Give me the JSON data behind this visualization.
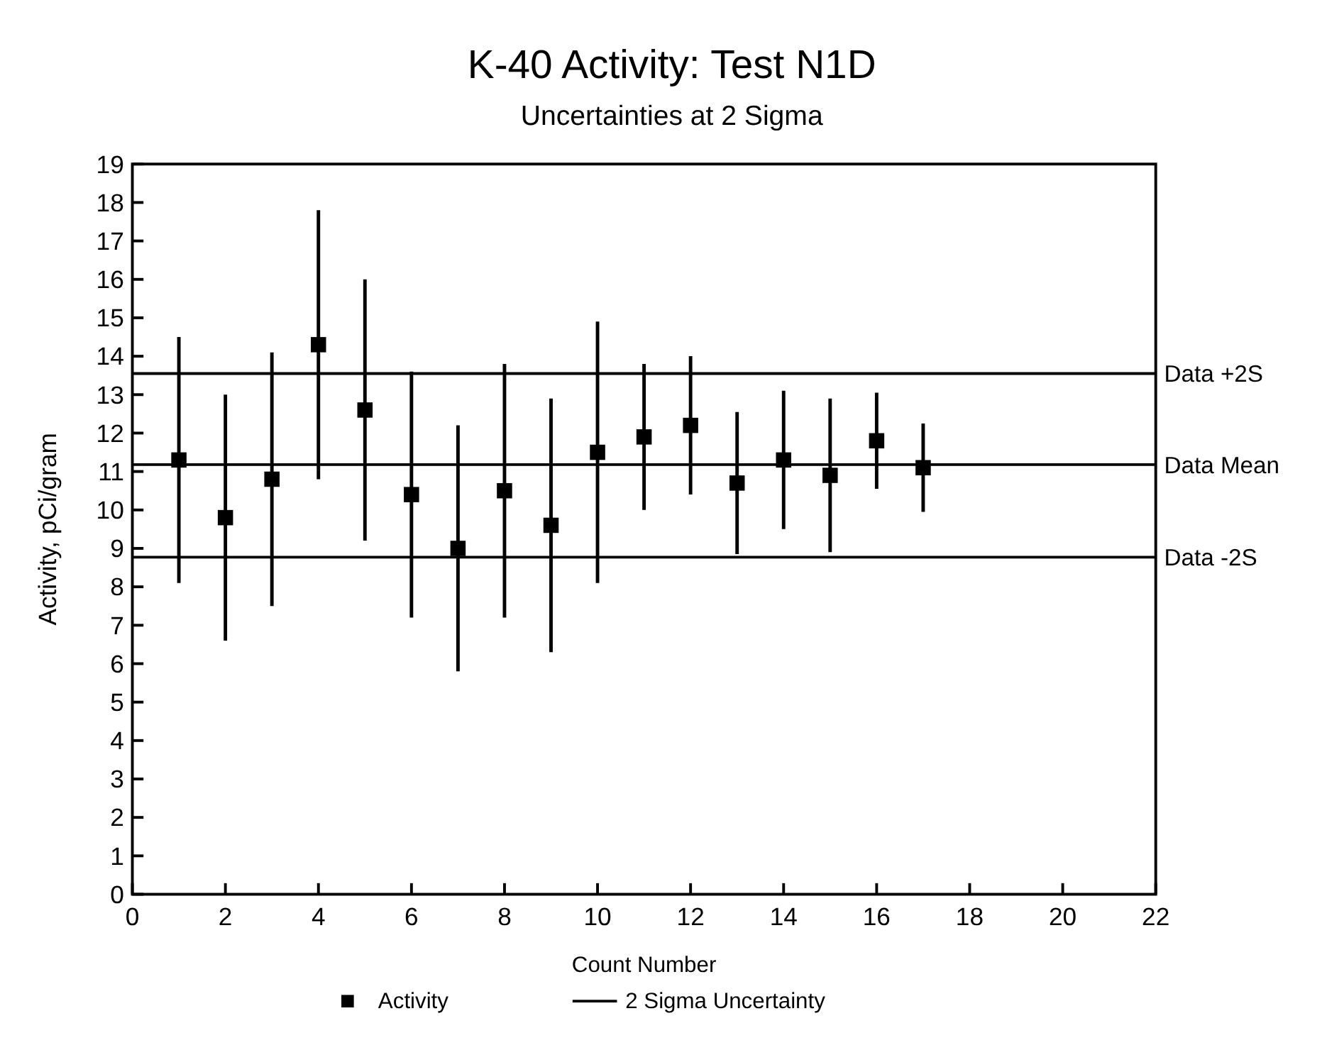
{
  "chart_data": {
    "type": "scatter",
    "title": "K-40 Activity: Test N1D",
    "subtitle": "Uncertainties at 2 Sigma",
    "xlabel": "Count Number",
    "ylabel": "Activity, pCi/gram",
    "x": [
      1,
      2,
      3,
      4,
      5,
      6,
      7,
      8,
      9,
      10,
      11,
      12,
      13,
      14,
      15,
      16,
      17
    ],
    "series": [
      {
        "name": "Activity",
        "color": "#000000",
        "values": [
          11.3,
          9.8,
          10.8,
          14.3,
          12.6,
          10.4,
          9.0,
          10.5,
          9.6,
          11.5,
          11.9,
          12.2,
          10.7,
          11.3,
          10.9,
          11.8,
          11.1
        ],
        "errors": [
          3.2,
          3.2,
          3.3,
          3.5,
          3.4,
          3.2,
          3.2,
          3.3,
          3.3,
          3.4,
          1.9,
          1.8,
          1.85,
          1.8,
          2.0,
          1.25,
          1.15
        ]
      }
    ],
    "xlim": [
      0,
      22
    ],
    "xticks": [
      0,
      2,
      4,
      6,
      8,
      10,
      12,
      14,
      16,
      18,
      20,
      22
    ],
    "ylim": [
      0,
      19
    ],
    "yticks": [
      0,
      1,
      2,
      3,
      4,
      5,
      6,
      7,
      8,
      9,
      10,
      11,
      12,
      13,
      14,
      15,
      16,
      17,
      18,
      19
    ],
    "ref_lines": [
      {
        "axis": "y",
        "value": 13.55,
        "label": "Data +2S",
        "color": "#000000"
      },
      {
        "axis": "y",
        "value": 11.18,
        "label": "Data Mean",
        "color": "#000000"
      },
      {
        "axis": "y",
        "value": 8.77,
        "label": "Data -2S",
        "color": "#000000"
      }
    ],
    "annotations": [
      "2 Sigma Uncertainty"
    ],
    "marker": "square",
    "grid": false,
    "legend": "bottom"
  }
}
